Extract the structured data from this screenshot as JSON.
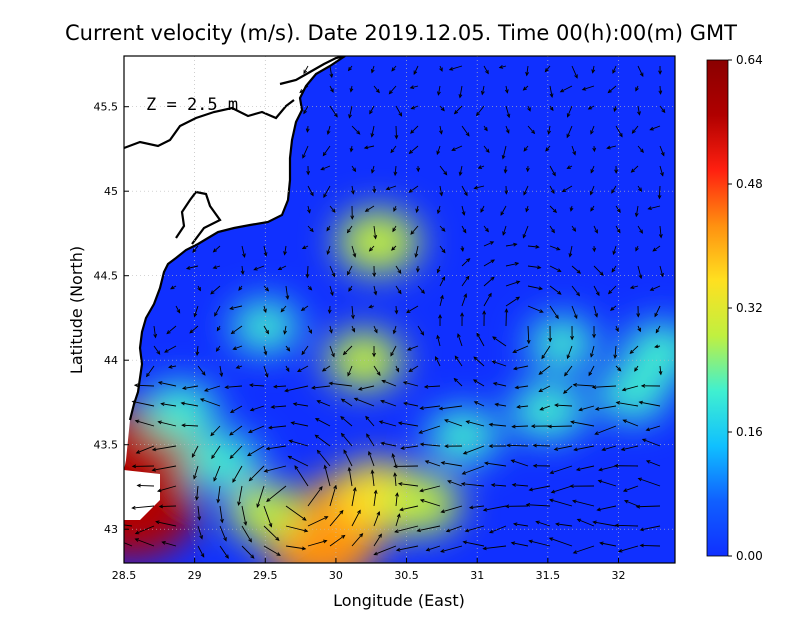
{
  "chart_data": {
    "type": "heatmap",
    "title": "Current velocity (m/s). Date 2019.12.05. Time 00(h):00(m) GMT",
    "xlabel": "Longitude (East)",
    "ylabel": "Latitude (North)",
    "annotation": "Z = 2.5 m",
    "xlim": [
      28.5,
      32.4
    ],
    "ylim": [
      42.8,
      45.8
    ],
    "x_ticks": [
      28.5,
      29,
      29.5,
      30,
      30.5,
      31,
      31.5,
      32
    ],
    "x_tick_labels": [
      "28.5",
      "29",
      "29.5",
      "30",
      "30.5",
      "31",
      "31.5",
      "32"
    ],
    "y_ticks": [
      43,
      43.5,
      44,
      44.5,
      45,
      45.5
    ],
    "y_tick_labels": [
      "43",
      "43.5",
      "44",
      "44.5",
      "45",
      "45.5"
    ],
    "grid": true,
    "colorbar": {
      "min": 0.0,
      "max": 0.64,
      "ticks": [
        0.0,
        0.16,
        0.32,
        0.48,
        0.64
      ],
      "tick_labels": [
        "0.00",
        "0.16",
        "0.32",
        "0.48",
        "0.64"
      ],
      "colors": [
        "#1030ff",
        "#1060ff",
        "#10c0ff",
        "#40f0d0",
        "#c0f040",
        "#ffe020",
        "#ff9010",
        "#ff2010",
        "#b00000",
        "#8a0000"
      ]
    },
    "speed_features": [
      {
        "lon": 29.9,
        "lat": 42.9,
        "speed": 0.46
      },
      {
        "lon": 30.1,
        "lat": 43.1,
        "speed": 0.4
      },
      {
        "lon": 30.3,
        "lat": 43.2,
        "speed": 0.35
      },
      {
        "lon": 28.6,
        "lat": 43.45,
        "speed": 0.58
      },
      {
        "lon": 28.55,
        "lat": 43.12,
        "speed": 0.6
      },
      {
        "lon": 29.5,
        "lat": 43.1,
        "speed": 0.25
      },
      {
        "lon": 30.6,
        "lat": 43.15,
        "speed": 0.28
      },
      {
        "lon": 29.2,
        "lat": 43.4,
        "speed": 0.24
      },
      {
        "lon": 30.9,
        "lat": 43.55,
        "speed": 0.22
      },
      {
        "lon": 31.5,
        "lat": 43.7,
        "speed": 0.24
      },
      {
        "lon": 32.1,
        "lat": 43.8,
        "speed": 0.22
      },
      {
        "lon": 30.2,
        "lat": 44.0,
        "speed": 0.26
      },
      {
        "lon": 28.9,
        "lat": 43.7,
        "speed": 0.24
      },
      {
        "lon": 32.3,
        "lat": 44.05,
        "speed": 0.24
      },
      {
        "lon": 30.3,
        "lat": 44.7,
        "speed": 0.3
      },
      {
        "lon": 29.5,
        "lat": 44.2,
        "speed": 0.2
      },
      {
        "lon": 31.6,
        "lat": 44.1,
        "speed": 0.2
      }
    ],
    "vector_field": "arrows on a regular grid showing current direction",
    "coastline_color": "#000000",
    "land_color": "#ffffff"
  }
}
